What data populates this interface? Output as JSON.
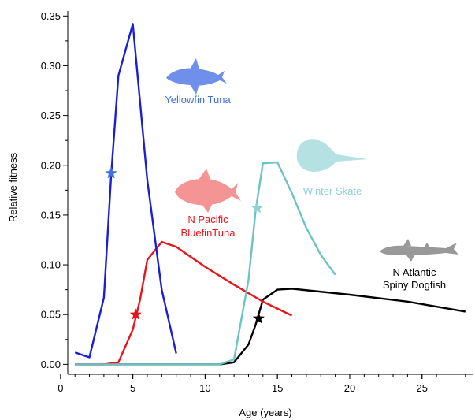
{
  "chart_data": {
    "type": "line",
    "title": "",
    "xlabel": "Age (years)",
    "ylabel": "Relative fitness",
    "xlim": [
      0.5,
      28.5
    ],
    "ylim": [
      -0.01,
      0.355
    ],
    "xticks": [
      0,
      5,
      10,
      15,
      20,
      25
    ],
    "yticks": [
      0.0,
      0.05,
      0.1,
      0.15,
      0.2,
      0.25,
      0.3,
      0.35
    ],
    "ytick_labels": [
      "0.00",
      "0.05",
      "0.10",
      "0.15",
      "0.20",
      "0.25",
      "0.30",
      "0.35"
    ],
    "grid": false,
    "legend": "none",
    "series": [
      {
        "name": "Yellowfin Tuna",
        "label_lines": [
          "Yellowfin Tuna"
        ],
        "color": "#1a1fd6",
        "icon_color": "#6f8fea",
        "label_color": "#3f6fe0",
        "icon": "tuna-icon",
        "x": [
          1,
          2,
          3,
          3.5,
          4,
          5,
          6,
          7,
          8
        ],
        "y": [
          0.012,
          0.007,
          0.067,
          0.19,
          0.29,
          0.342,
          0.185,
          0.075,
          0.011
        ],
        "star": {
          "x": 3.5,
          "y": 0.192,
          "color": "#3f6fe0"
        }
      },
      {
        "name": "N Pacific BluefinTuna",
        "label_lines": [
          "N Pacific",
          "BluefinTuna"
        ],
        "color": "#e8141b",
        "icon_color": "#f59494",
        "label_color": "#e8141b",
        "icon": "bluefin-tuna-icon",
        "x": [
          1,
          2,
          3,
          4,
          5,
          5.5,
          6,
          7,
          8,
          10,
          12,
          14,
          16
        ],
        "y": [
          0.0,
          0.0,
          0.0,
          0.002,
          0.035,
          0.065,
          0.105,
          0.123,
          0.118,
          0.098,
          0.08,
          0.063,
          0.049
        ],
        "star": {
          "x": 5.2,
          "y": 0.05,
          "color": "#e8141b"
        }
      },
      {
        "name": "Winter Skate",
        "label_lines": [
          "Winter Skate"
        ],
        "color": "#6cc3c6",
        "icon_color": "#b5e1e3",
        "label_color": "#8fd2d4",
        "icon": "skate-icon",
        "x": [
          1,
          10,
          11,
          12,
          13,
          13.5,
          14,
          15,
          16,
          17,
          18,
          19
        ],
        "y": [
          0.0,
          0.0,
          0.0,
          0.005,
          0.085,
          0.155,
          0.202,
          0.203,
          0.172,
          0.137,
          0.11,
          0.09
        ],
        "star": {
          "x": 13.6,
          "y": 0.157,
          "color": "#8fd2d4"
        }
      },
      {
        "name": "N Atlantic Spiny Dogfish",
        "label_lines": [
          "N Atlantic",
          "Spiny Dogfish"
        ],
        "color": "#000000",
        "icon_color": "#999999",
        "label_color": "#000000",
        "icon": "dogfish-shark-icon",
        "x": [
          1,
          11,
          12,
          13,
          13.5,
          14,
          15,
          16,
          20,
          24,
          28
        ],
        "y": [
          0.0,
          0.0,
          0.002,
          0.02,
          0.04,
          0.065,
          0.075,
          0.076,
          0.07,
          0.063,
          0.053
        ],
        "star": {
          "x": 13.7,
          "y": 0.046,
          "color": "#000000"
        }
      }
    ]
  }
}
